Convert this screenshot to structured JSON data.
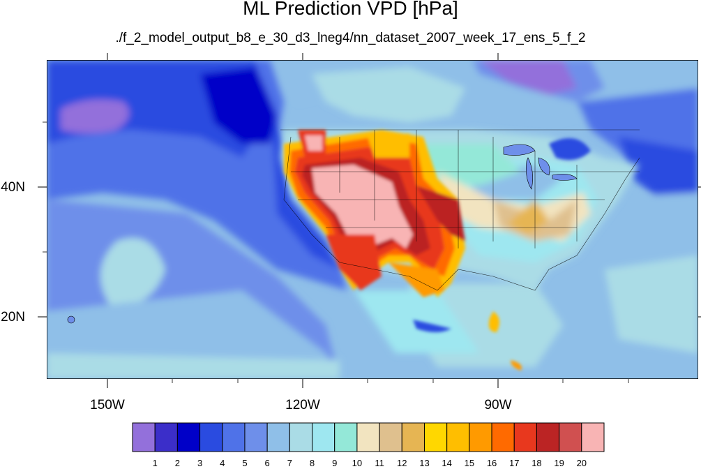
{
  "title": "ML Prediction VPD [hPa]",
  "subtitle": "./f_2_model_output_b8_e_30_d3_lneg4/nn_dataset_2007_week_17_ens_5_f_2",
  "lon_labels": [
    "150W",
    "120W",
    "90W"
  ],
  "lat_labels": [
    "40N",
    "20N"
  ],
  "colorbar": {
    "levels": [
      "1",
      "2",
      "3",
      "4",
      "5",
      "6",
      "7",
      "8",
      "9",
      "10",
      "11",
      "12",
      "13",
      "14",
      "15",
      "16",
      "17",
      "18",
      "19",
      "20"
    ],
    "colors": [
      "#9370db",
      "#3b2ec9",
      "#0000c8",
      "#2a4be0",
      "#4f72e8",
      "#6e8fea",
      "#8fbfe8",
      "#aadce6",
      "#9ee7f0",
      "#94e8d8",
      "#f2e4c0",
      "#dfc08e",
      "#e6b553",
      "#ffd700",
      "#ffbe00",
      "#ff9a00",
      "#ff6a00",
      "#e8381e",
      "#bb2424",
      "#d05050",
      "#f8b4b4"
    ]
  }
}
